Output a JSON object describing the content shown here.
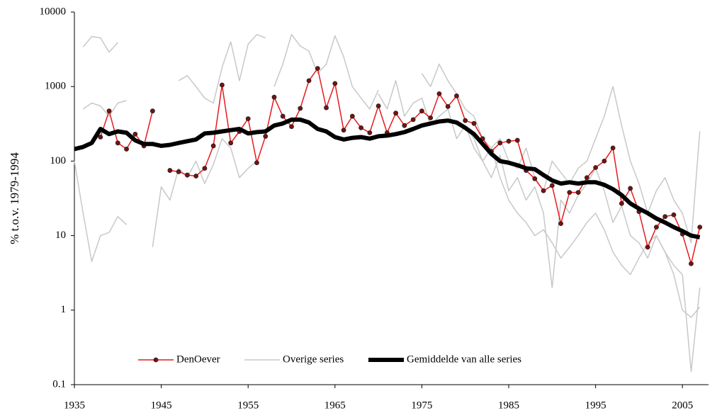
{
  "chart_data": {
    "type": "line",
    "y_label": "% t.o.v. 1979-1994",
    "log_y": true,
    "xlim": [
      1935,
      2008
    ],
    "xticks": [
      1935,
      1945,
      1955,
      1965,
      1975,
      1985,
      1995,
      2005
    ],
    "ylim": [
      0.1,
      10000
    ],
    "yticks": [
      0.1,
      1,
      10,
      100,
      1000,
      10000
    ],
    "legend": "bottom",
    "series": [
      {
        "name": "DenOever",
        "color": "#e8191e",
        "marker": true,
        "x": [
          1938,
          1939,
          1940,
          1941,
          1942,
          1943,
          1944,
          1945,
          1946,
          1947,
          1948,
          1949,
          1950,
          1951,
          1952,
          1953,
          1954,
          1955,
          1956,
          1957,
          1958,
          1959,
          1960,
          1961,
          1962,
          1963,
          1964,
          1965,
          1966,
          1967,
          1968,
          1969,
          1970,
          1971,
          1972,
          1973,
          1974,
          1975,
          1976,
          1977,
          1978,
          1979,
          1980,
          1981,
          1982,
          1983,
          1984,
          1985,
          1986,
          1987,
          1988,
          1989,
          1990,
          1991,
          1992,
          1993,
          1994,
          1995,
          1996,
          1997,
          1998,
          1999,
          2000,
          2001,
          2002,
          2003,
          2004,
          2005,
          2006,
          2007
        ],
        "values": [
          210,
          470,
          175,
          145,
          230,
          160,
          470,
          null,
          75,
          72,
          65,
          63,
          80,
          160,
          1050,
          175,
          250,
          370,
          95,
          215,
          720,
          400,
          290,
          510,
          1200,
          1750,
          520,
          1100,
          260,
          400,
          280,
          240,
          550,
          240,
          440,
          300,
          360,
          470,
          380,
          800,
          540,
          750,
          350,
          320,
          200,
          135,
          175,
          185,
          190,
          75,
          58,
          40,
          47,
          14.5,
          38,
          38,
          60,
          82,
          100,
          150,
          27,
          43,
          21,
          7,
          13,
          18,
          19,
          10.5,
          4.2,
          13
        ]
      },
      {
        "name": "Overige series",
        "color": "#c8c8c8",
        "lines": [
          {
            "x": [
              1936,
              1937,
              1938,
              1939,
              1940
            ],
            "values": [
              3400,
              4700,
              4500,
              2900,
              3900
            ]
          },
          {
            "x": [
              1936,
              1937,
              1938,
              1939,
              1940,
              1941
            ],
            "values": [
              500,
              600,
              550,
              400,
              600,
              650
            ]
          },
          {
            "x": [
              1935,
              1936,
              1937,
              1938,
              1939,
              1940,
              1941
            ],
            "values": [
              100,
              20,
              4.5,
              10,
              11,
              18,
              14
            ]
          },
          {
            "x": [
              1947,
              1948,
              1949,
              1950,
              1951,
              1952,
              1953,
              1954,
              1955,
              1956,
              1957
            ],
            "values": [
              1200,
              1400,
              1000,
              700,
              600,
              1800,
              4000,
              1200,
              3700,
              5000,
              4500
            ]
          },
          {
            "x": [
              1944,
              1945,
              1946,
              1947,
              1948,
              1949,
              1950,
              1951,
              1952,
              1953,
              1954,
              1955,
              1956
            ],
            "values": [
              7,
              45,
              30,
              80,
              60,
              100,
              50,
              90,
              200,
              150,
              60,
              80,
              100
            ]
          },
          {
            "x": [
              1958,
              1959,
              1960,
              1961,
              1962,
              1963,
              1964,
              1965,
              1966,
              1967,
              1968,
              1969,
              1970
            ],
            "values": [
              1000,
              2000,
              5000,
              3500,
              3000,
              1500,
              2000,
              4800,
              2500,
              1000,
              700,
              500,
              900
            ]
          },
          {
            "x": [
              1970,
              1971,
              1972,
              1973,
              1974,
              1975,
              1976,
              1977,
              1978,
              1979,
              1980,
              1981,
              1982,
              1983,
              1984,
              1985,
              1986,
              1987,
              1988,
              1989,
              1990,
              1991,
              1992,
              1993,
              1994,
              1995,
              1996,
              1997,
              1998,
              1999,
              2000,
              2001,
              2002,
              2003,
              2004,
              2005,
              2006,
              2007
            ],
            "values": [
              800,
              500,
              1200,
              400,
              600,
              700,
              300,
              400,
              500,
              200,
              300,
              150,
              100,
              60,
              120,
              40,
              60,
              30,
              45,
              20,
              2,
              30,
              20,
              35,
              50,
              80,
              40,
              15,
              25,
              10,
              8,
              5,
              10,
              6,
              4,
              3,
              0.15,
              2
            ]
          },
          {
            "x": [
              1975,
              1976,
              1977,
              1978,
              1979,
              1980,
              1981,
              1982,
              1983,
              1984,
              1985,
              1986,
              1987,
              1988,
              1989,
              1990,
              1991,
              1992,
              1993,
              1994,
              1995,
              1996,
              1997,
              1998,
              1999,
              2000,
              2001,
              2002,
              2003,
              2004,
              2005,
              2006,
              2007
            ],
            "values": [
              1500,
              1000,
              2000,
              1200,
              800,
              500,
              400,
              200,
              150,
              200,
              100,
              80,
              150,
              60,
              40,
              100,
              70,
              50,
              80,
              100,
              200,
              400,
              1000,
              300,
              100,
              50,
              20,
              40,
              60,
              30,
              20,
              8,
              250
            ]
          },
          {
            "x": [
              1980,
              1981,
              1982,
              1983,
              1984,
              1985,
              1986,
              1987,
              1988,
              1989,
              1990,
              1991,
              1992,
              1993,
              1994,
              1995,
              1996,
              1997,
              1998,
              1999,
              2000,
              2001,
              2002,
              2003,
              2004,
              2005,
              2006,
              2007
            ],
            "values": [
              300,
              200,
              100,
              150,
              60,
              30,
              20,
              15,
              10,
              12,
              8,
              5,
              7,
              10,
              15,
              20,
              12,
              6,
              4,
              3,
              5,
              8,
              10,
              6,
              3,
              1,
              0.8,
              1.1
            ]
          }
        ]
      },
      {
        "name": "Gemiddelde van alle series",
        "color": "#000000",
        "x": [
          1935,
          1936,
          1937,
          1938,
          1939,
          1940,
          1941,
          1942,
          1943,
          1944,
          1945,
          1946,
          1947,
          1948,
          1949,
          1950,
          1951,
          1952,
          1953,
          1954,
          1955,
          1956,
          1957,
          1958,
          1959,
          1960,
          1961,
          1962,
          1963,
          1964,
          1965,
          1966,
          1967,
          1968,
          1969,
          1970,
          1971,
          1972,
          1973,
          1974,
          1975,
          1976,
          1977,
          1978,
          1979,
          1980,
          1981,
          1982,
          1983,
          1984,
          1985,
          1986,
          1987,
          1988,
          1989,
          1990,
          1991,
          1992,
          1993,
          1994,
          1995,
          1996,
          1997,
          1998,
          1999,
          2000,
          2001,
          2002,
          2003,
          2004,
          2005,
          2006,
          2007
        ],
        "values": [
          145,
          155,
          175,
          270,
          230,
          250,
          240,
          190,
          170,
          170,
          160,
          165,
          175,
          185,
          195,
          235,
          240,
          250,
          260,
          270,
          235,
          245,
          250,
          300,
          320,
          360,
          360,
          330,
          270,
          250,
          210,
          195,
          205,
          210,
          200,
          215,
          220,
          230,
          245,
          270,
          300,
          320,
          340,
          350,
          330,
          280,
          230,
          170,
          125,
          100,
          95,
          88,
          80,
          78,
          65,
          55,
          50,
          52,
          50,
          52,
          52,
          48,
          42,
          35,
          27,
          23,
          20,
          17,
          15,
          13,
          11.5,
          10,
          9.5
        ]
      }
    ]
  }
}
